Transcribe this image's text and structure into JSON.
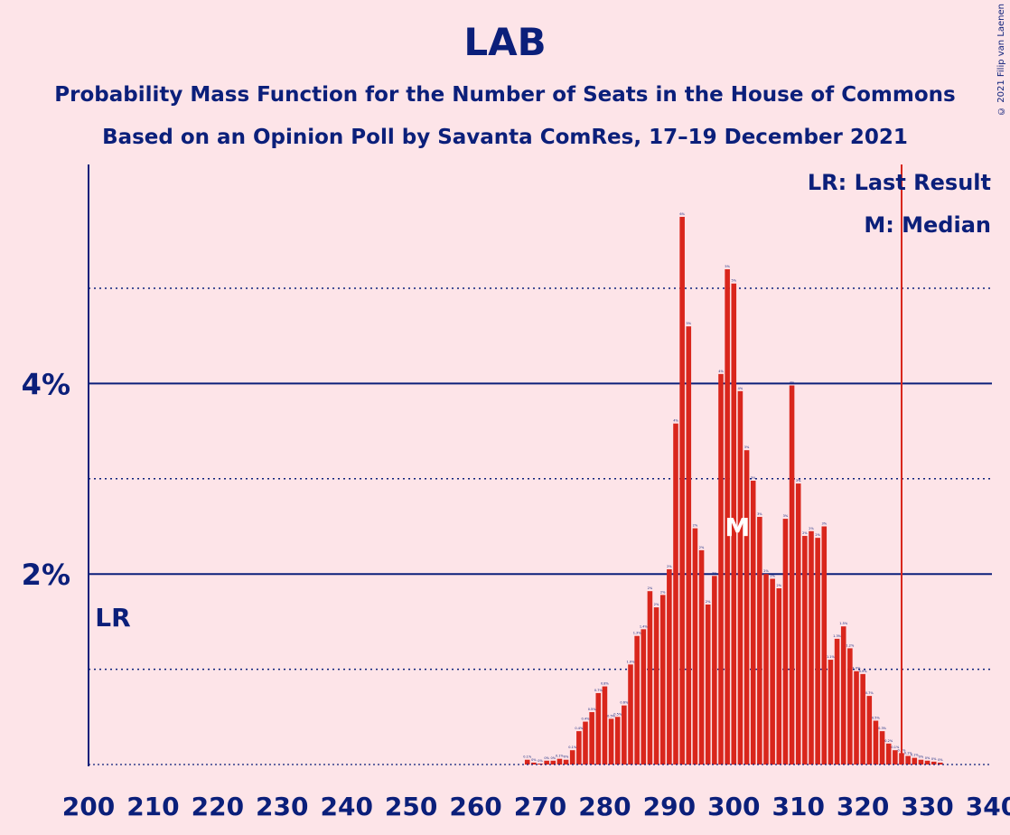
{
  "title": "LAB",
  "subtitle": "Probability Mass Function for the Number of Seats in the House of Commons",
  "source": "Based on an Opinion Poll by Savanta ComRes, 17–19 December 2021",
  "copyright": "© 2021 Filip van Laenen",
  "legend": {
    "last_result": "LR: Last Result",
    "median": "M: Median"
  },
  "markers": {
    "last_result_label": "LR",
    "median_label": "M",
    "last_result_x": 202,
    "median_x": 300,
    "line_x": 326
  },
  "colors": {
    "background": "#fde4e8",
    "bar": "#d9261c",
    "text": "#0b1f7a",
    "median_label": "#ffffff"
  },
  "chart_data": {
    "type": "bar",
    "title": "LAB",
    "xlabel": "",
    "ylabel": "",
    "xlim": [
      200,
      340
    ],
    "ylim": [
      0,
      6.3
    ],
    "x_ticks": [
      200,
      210,
      220,
      230,
      240,
      250,
      260,
      270,
      280,
      290,
      300,
      310,
      320,
      330,
      340
    ],
    "y_ticks_labeled": [
      {
        "value": 2,
        "label": "2%"
      },
      {
        "value": 4,
        "label": "4%"
      }
    ],
    "y_gridlines_minor": [
      1,
      3,
      5
    ],
    "legend_position": "top-right",
    "x": [
      268,
      269,
      270,
      271,
      272,
      273,
      274,
      275,
      276,
      277,
      278,
      279,
      280,
      281,
      282,
      283,
      284,
      285,
      286,
      287,
      288,
      289,
      290,
      291,
      292,
      293,
      294,
      295,
      296,
      297,
      298,
      299,
      300,
      301,
      302,
      303,
      304,
      305,
      306,
      307,
      308,
      309,
      310,
      311,
      312,
      313,
      314,
      315,
      316,
      317,
      318,
      319,
      320,
      321,
      322,
      323,
      324,
      325,
      326,
      327,
      328,
      329,
      330,
      331,
      332
    ],
    "values": [
      0.05,
      0.02,
      0.01,
      0.04,
      0.04,
      0.06,
      0.05,
      0.15,
      0.35,
      0.45,
      0.55,
      0.75,
      0.82,
      0.48,
      0.5,
      0.62,
      1.05,
      1.35,
      1.42,
      1.82,
      1.65,
      1.78,
      2.05,
      3.58,
      5.75,
      4.6,
      2.48,
      2.25,
      1.68,
      1.98,
      4.1,
      5.2,
      5.05,
      3.92,
      3.3,
      2.98,
      2.6,
      2.0,
      1.95,
      1.85,
      2.58,
      3.98,
      2.95,
      2.4,
      2.45,
      2.38,
      2.5,
      1.1,
      1.32,
      1.45,
      1.22,
      0.98,
      0.95,
      0.72,
      0.46,
      0.35,
      0.22,
      0.15,
      0.12,
      0.09,
      0.07,
      0.05,
      0.04,
      0.03,
      0.02
    ],
    "labels": [
      "0.1%",
      "0%",
      "0%",
      "0%",
      "0%",
      "0.1%",
      "0%",
      "0.1%",
      "0.4%",
      "0.4%",
      "0.5%",
      "0.7%",
      "0.8%",
      "0.5%",
      "0.5%",
      "0.6%",
      "1.0%",
      "1.3%",
      "1.4%",
      "2%",
      "2%",
      "2%",
      "2%",
      "4%",
      "6%",
      "5%",
      "2%",
      "2%",
      "2%",
      "2%",
      "4%",
      "5%",
      "5%",
      "4%",
      "3%",
      "3%",
      "3%",
      "2%",
      "2%",
      "2%",
      "3%",
      "4%",
      "3%",
      "2%",
      "2%",
      "2%",
      "3%",
      "1.1%",
      "1.3%",
      "1.5%",
      "1.2%",
      "1.0%",
      "0.9%",
      "0.7%",
      "0.5%",
      "0.3%",
      "0.2%",
      "0.1%",
      "0.1%",
      "0.1%",
      "0.1%",
      "0%",
      "0%",
      "0%",
      "0%"
    ]
  }
}
